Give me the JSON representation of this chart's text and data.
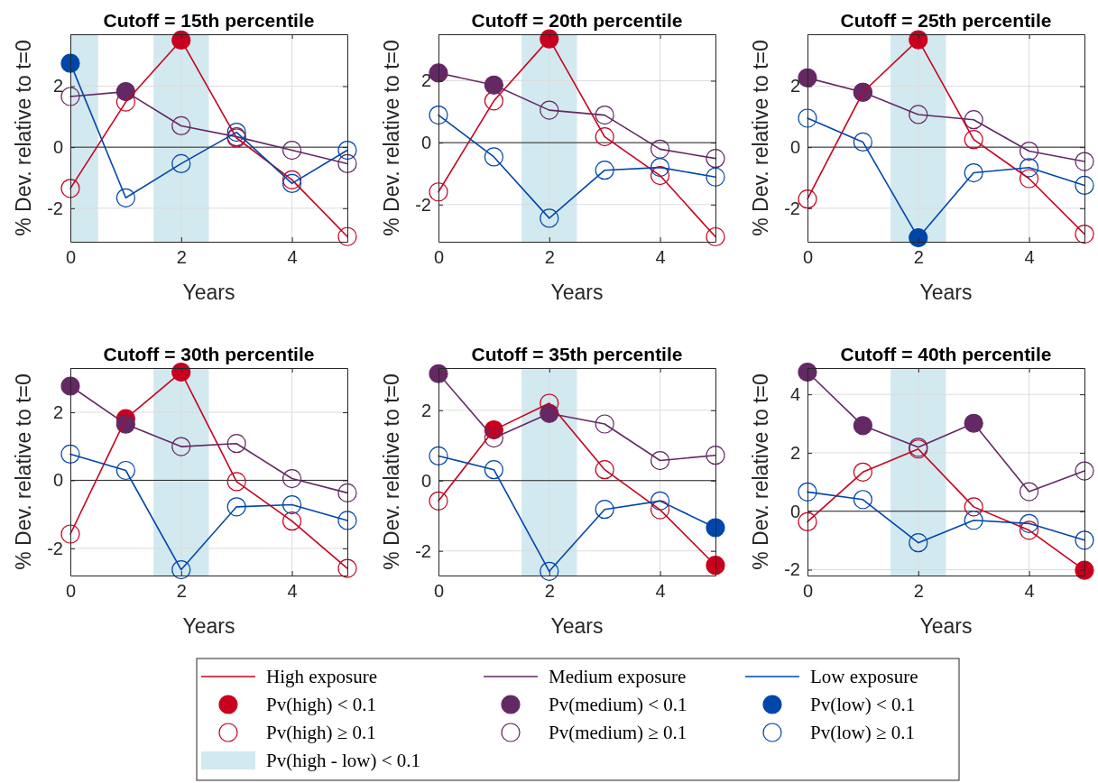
{
  "chart_data": [
    {
      "type": "line",
      "title": "Cutoff = 15th percentile",
      "xlabel": "Years",
      "ylabel": "% Dev. relative to t=0",
      "x": [
        0,
        1,
        2,
        3,
        4,
        5
      ],
      "xlim": [
        0,
        5
      ],
      "xticks": [
        0,
        2,
        4
      ],
      "ylim": [
        -3.1,
        3.7
      ],
      "yticks": [
        -2,
        0,
        2
      ],
      "grid": true,
      "legend": "bottom",
      "bands": [
        {
          "axis": "x",
          "from": 0,
          "to": 0.5,
          "color": "#d2e9ef",
          "label": "Pv(high - low) < 0.1"
        },
        {
          "axis": "x",
          "from": 1.5,
          "to": 2.5,
          "color": "#d2e9ef"
        }
      ],
      "ref_lines": [
        {
          "axis": "y",
          "value": 0,
          "color": "#262626"
        }
      ],
      "series": [
        {
          "name": "High exposure",
          "marker": "none",
          "color": "#c8001e",
          "values": [
            -1.35,
            1.48,
            3.51,
            0.3,
            -1.07,
            -2.93
          ]
        },
        {
          "name": "Pv(high) < 0.1",
          "type": "bubble",
          "marker": "circle",
          "color": "#c8001e",
          "values": [
            null,
            null,
            3.51,
            null,
            null,
            null
          ],
          "sizes": [
            null,
            null,
            1,
            null,
            null,
            null
          ]
        },
        {
          "name": "Pv(high) ≥ 0.1",
          "type": "scatter",
          "marker": "circle",
          "color": "#c8001e",
          "values": [
            -1.35,
            1.48,
            null,
            0.3,
            -1.07,
            -2.93
          ]
        },
        {
          "name": "Medium exposure",
          "marker": "none",
          "color": "#642864",
          "values": [
            1.66,
            1.82,
            0.7,
            0.34,
            -0.1,
            -0.54
          ]
        },
        {
          "name": "Pv(medium) < 0.1",
          "type": "bubble",
          "marker": "circle",
          "color": "#642864",
          "values": [
            null,
            1.82,
            null,
            null,
            null,
            null
          ],
          "sizes": [
            null,
            1,
            null,
            null,
            null,
            null
          ]
        },
        {
          "name": "Pv(medium) ≥ 0.1",
          "type": "scatter",
          "marker": "circle",
          "color": "#642864",
          "values": [
            1.66,
            null,
            0.7,
            0.34,
            -0.1,
            -0.54
          ]
        },
        {
          "name": "Low exposure",
          "marker": "none",
          "color": "#0046aa",
          "values": [
            2.75,
            -1.66,
            -0.54,
            0.49,
            -1.19,
            -0.1
          ]
        },
        {
          "name": "Pv(low) < 0.1",
          "type": "bubble",
          "marker": "circle",
          "color": "#0046aa",
          "values": [
            2.75,
            null,
            null,
            null,
            null,
            null
          ],
          "sizes": [
            1,
            null,
            null,
            null,
            null,
            null
          ]
        },
        {
          "name": "Pv(low) ≥ 0.1",
          "type": "scatter",
          "marker": "circle",
          "color": "#0046aa",
          "values": [
            null,
            -1.66,
            -0.54,
            0.49,
            -1.19,
            -0.1
          ]
        }
      ]
    },
    {
      "type": "line",
      "title": "Cutoff = 20th percentile",
      "xlabel": "Years",
      "ylabel": "% Dev. relative to t=0",
      "x": [
        0,
        1,
        2,
        3,
        4,
        5
      ],
      "xlim": [
        0,
        5
      ],
      "xticks": [
        0,
        2,
        4
      ],
      "ylim": [
        -3.2,
        3.5
      ],
      "yticks": [
        -2,
        0,
        2
      ],
      "grid": true,
      "bands": [
        {
          "axis": "x",
          "from": 1.5,
          "to": 2.5,
          "color": "#d2e9ef"
        }
      ],
      "ref_lines": [
        {
          "axis": "y",
          "value": 0,
          "color": "#262626"
        }
      ],
      "series": [
        {
          "marker": "none",
          "color": "#c8001e",
          "values": [
            -1.59,
            1.35,
            3.35,
            0.19,
            -1.06,
            -3.04
          ]
        },
        {
          "type": "bubble",
          "marker": "circle",
          "color": "#c8001e",
          "values": [
            null,
            null,
            3.35,
            null,
            null,
            null
          ],
          "sizes": [
            null,
            null,
            1,
            null,
            null,
            null
          ]
        },
        {
          "type": "scatter",
          "marker": "circle",
          "color": "#c8001e",
          "values": [
            -1.59,
            1.35,
            null,
            0.19,
            -1.06,
            -3.04
          ]
        },
        {
          "marker": "none",
          "color": "#642864",
          "values": [
            2.25,
            1.86,
            1.05,
            0.89,
            -0.21,
            -0.51
          ]
        },
        {
          "type": "bubble",
          "marker": "circle",
          "color": "#642864",
          "values": [
            2.25,
            1.86,
            null,
            null,
            null,
            null
          ],
          "sizes": [
            1,
            1,
            null,
            null,
            null,
            null
          ]
        },
        {
          "type": "scatter",
          "marker": "circle",
          "color": "#642864",
          "values": [
            null,
            null,
            1.05,
            0.89,
            -0.21,
            -0.51
          ]
        },
        {
          "marker": "none",
          "color": "#0046aa",
          "values": [
            0.89,
            -0.46,
            -2.44,
            -0.89,
            -0.8,
            -1.11
          ]
        },
        {
          "type": "scatter",
          "marker": "circle",
          "color": "#0046aa",
          "values": [
            0.89,
            -0.46,
            -2.44,
            -0.89,
            -0.8,
            -1.11
          ]
        }
      ]
    },
    {
      "type": "line",
      "title": "Cutoff = 25th percentile",
      "xlabel": "Years",
      "ylabel": "% Dev. relative to t=0",
      "x": [
        0,
        1,
        2,
        3,
        4,
        5
      ],
      "xlim": [
        0,
        5
      ],
      "xticks": [
        0,
        2,
        4
      ],
      "ylim": [
        -3.1,
        3.7
      ],
      "yticks": [
        -2,
        0,
        2
      ],
      "grid": true,
      "bands": [
        {
          "axis": "x",
          "from": 1.5,
          "to": 2.5,
          "color": "#d2e9ef"
        }
      ],
      "ref_lines": [
        {
          "axis": "y",
          "value": 0,
          "color": "#262626"
        }
      ],
      "series": [
        {
          "marker": "none",
          "color": "#c8001e",
          "values": [
            -1.7,
            1.8,
            3.52,
            0.25,
            -1.03,
            -2.85
          ]
        },
        {
          "type": "bubble",
          "marker": "circle",
          "color": "#c8001e",
          "values": [
            null,
            null,
            3.52,
            null,
            null,
            null
          ],
          "sizes": [
            null,
            null,
            1,
            null,
            null,
            null
          ]
        },
        {
          "type": "scatter",
          "marker": "circle",
          "color": "#c8001e",
          "values": [
            -1.7,
            1.8,
            null,
            0.25,
            -1.03,
            -2.85
          ]
        },
        {
          "marker": "none",
          "color": "#642864",
          "values": [
            2.27,
            1.8,
            1.07,
            0.9,
            -0.13,
            -0.47
          ]
        },
        {
          "type": "bubble",
          "marker": "circle",
          "color": "#642864",
          "values": [
            2.27,
            1.8,
            null,
            null,
            null,
            null
          ],
          "sizes": [
            1,
            1,
            null,
            null,
            null,
            null
          ]
        },
        {
          "type": "scatter",
          "marker": "circle",
          "color": "#642864",
          "values": [
            null,
            null,
            1.07,
            0.9,
            -0.13,
            -0.47
          ]
        },
        {
          "marker": "none",
          "color": "#0046aa",
          "values": [
            0.95,
            0.17,
            -2.97,
            -0.84,
            -0.67,
            -1.25
          ]
        },
        {
          "type": "bubble",
          "marker": "circle",
          "color": "#0046aa",
          "values": [
            null,
            null,
            -2.97,
            null,
            null,
            null
          ],
          "sizes": [
            null,
            null,
            1,
            null,
            null,
            null
          ]
        },
        {
          "type": "scatter",
          "marker": "circle",
          "color": "#0046aa",
          "values": [
            0.95,
            0.17,
            null,
            -0.84,
            -0.67,
            -1.25
          ]
        }
      ]
    },
    {
      "type": "line",
      "title": "Cutoff = 30th percentile",
      "xlabel": "Years",
      "ylabel": "% Dev. relative to t=0",
      "x": [
        0,
        1,
        2,
        3,
        4,
        5
      ],
      "xlim": [
        0,
        5
      ],
      "xticks": [
        0,
        2,
        4
      ],
      "ylim": [
        -2.8,
        3.3
      ],
      "yticks": [
        -2,
        0,
        2
      ],
      "grid": true,
      "bands": [
        {
          "axis": "x",
          "from": 1.5,
          "to": 2.5,
          "color": "#d2e9ef"
        }
      ],
      "ref_lines": [
        {
          "axis": "y",
          "value": 0,
          "color": "#262626"
        }
      ],
      "series": [
        {
          "marker": "none",
          "color": "#c8001e",
          "values": [
            -1.58,
            1.81,
            3.18,
            -0.04,
            -1.2,
            -2.59
          ]
        },
        {
          "type": "bubble",
          "marker": "circle",
          "color": "#c8001e",
          "values": [
            null,
            1.81,
            3.18,
            null,
            null,
            null
          ],
          "sizes": [
            null,
            1,
            1,
            null,
            null,
            null
          ]
        },
        {
          "type": "scatter",
          "marker": "circle",
          "color": "#c8001e",
          "values": [
            -1.58,
            null,
            null,
            -0.04,
            -1.2,
            -2.59
          ]
        },
        {
          "marker": "none",
          "color": "#642864",
          "values": [
            2.77,
            1.65,
            0.99,
            1.08,
            0.05,
            -0.37
          ]
        },
        {
          "type": "bubble",
          "marker": "circle",
          "color": "#642864",
          "values": [
            2.77,
            1.65,
            null,
            null,
            null,
            null
          ],
          "sizes": [
            1,
            1,
            null,
            null,
            null,
            null
          ]
        },
        {
          "type": "scatter",
          "marker": "circle",
          "color": "#642864",
          "values": [
            null,
            null,
            0.99,
            1.08,
            0.05,
            -0.37
          ]
        },
        {
          "marker": "none",
          "color": "#0046aa",
          "values": [
            0.77,
            0.29,
            -2.63,
            -0.78,
            -0.72,
            -1.18
          ]
        },
        {
          "type": "scatter",
          "marker": "circle",
          "color": "#0046aa",
          "values": [
            0.77,
            0.29,
            -2.63,
            -0.78,
            -0.72,
            -1.18
          ]
        }
      ]
    },
    {
      "type": "line",
      "title": "Cutoff = 35th percentile",
      "xlabel": "Years",
      "ylabel": "% Dev. relative to t=0",
      "x": [
        0,
        1,
        2,
        3,
        4,
        5
      ],
      "xlim": [
        0,
        5
      ],
      "xticks": [
        0,
        2,
        4
      ],
      "ylim": [
        -2.7,
        3.2
      ],
      "yticks": [
        -2,
        0,
        2
      ],
      "grid": true,
      "bands": [
        {
          "axis": "x",
          "from": 1.5,
          "to": 2.5,
          "color": "#d2e9ef"
        }
      ],
      "ref_lines": [
        {
          "axis": "y",
          "value": 0,
          "color": "#262626"
        }
      ],
      "series": [
        {
          "marker": "none",
          "color": "#c8001e",
          "values": [
            -0.58,
            1.44,
            2.2,
            0.31,
            -0.83,
            -2.41
          ]
        },
        {
          "type": "bubble",
          "marker": "circle",
          "color": "#c8001e",
          "values": [
            null,
            1.44,
            null,
            null,
            null,
            -2.41
          ],
          "sizes": [
            null,
            1,
            null,
            null,
            null,
            1
          ]
        },
        {
          "type": "scatter",
          "marker": "circle",
          "color": "#c8001e",
          "values": [
            -0.58,
            null,
            2.2,
            0.31,
            -0.83,
            null
          ]
        },
        {
          "marker": "none",
          "color": "#642864",
          "values": [
            3.04,
            1.21,
            1.91,
            1.61,
            0.57,
            0.72
          ]
        },
        {
          "type": "bubble",
          "marker": "circle",
          "color": "#642864",
          "values": [
            3.04,
            null,
            1.91,
            null,
            null,
            null
          ],
          "sizes": [
            1,
            null,
            1,
            null,
            null,
            null
          ]
        },
        {
          "type": "scatter",
          "marker": "circle",
          "color": "#642864",
          "values": [
            null,
            1.21,
            null,
            1.61,
            0.57,
            0.72
          ]
        },
        {
          "marker": "none",
          "color": "#0046aa",
          "values": [
            0.7,
            0.31,
            -2.58,
            -0.82,
            -0.58,
            -1.34
          ]
        },
        {
          "type": "bubble",
          "marker": "circle",
          "color": "#0046aa",
          "values": [
            null,
            null,
            null,
            null,
            null,
            -1.34
          ],
          "sizes": [
            null,
            null,
            null,
            null,
            null,
            1
          ]
        },
        {
          "type": "scatter",
          "marker": "circle",
          "color": "#0046aa",
          "values": [
            0.7,
            0.31,
            -2.58,
            -0.82,
            -0.58,
            null
          ]
        }
      ]
    },
    {
      "type": "line",
      "title": "Cutoff = 40th percentile",
      "xlabel": "Years",
      "ylabel": "% Dev. relative to t=0",
      "x": [
        0,
        1,
        2,
        3,
        4,
        5
      ],
      "xlim": [
        0,
        5
      ],
      "xticks": [
        0,
        2,
        4
      ],
      "ylim": [
        -2.2,
        4.9
      ],
      "yticks": [
        -2,
        0,
        2,
        4
      ],
      "grid": true,
      "bands": [
        {
          "axis": "x",
          "from": 1.5,
          "to": 2.5,
          "color": "#d2e9ef"
        }
      ],
      "ref_lines": [
        {
          "axis": "y",
          "value": 0,
          "color": "#262626"
        }
      ],
      "series": [
        {
          "marker": "none",
          "color": "#c8001e",
          "values": [
            -0.36,
            1.34,
            2.13,
            0.15,
            -0.65,
            -2.02
          ]
        },
        {
          "type": "bubble",
          "marker": "circle",
          "color": "#c8001e",
          "values": [
            null,
            null,
            null,
            null,
            null,
            -2.02
          ],
          "sizes": [
            null,
            null,
            null,
            null,
            null,
            1
          ]
        },
        {
          "type": "scatter",
          "marker": "circle",
          "color": "#c8001e",
          "values": [
            -0.36,
            1.34,
            2.13,
            0.15,
            -0.65,
            null
          ]
        },
        {
          "marker": "none",
          "color": "#642864",
          "values": [
            4.76,
            2.93,
            2.19,
            3.01,
            0.67,
            1.38
          ]
        },
        {
          "type": "bubble",
          "marker": "circle",
          "color": "#642864",
          "values": [
            4.76,
            2.93,
            null,
            3.01,
            null,
            null
          ],
          "sizes": [
            1,
            1,
            null,
            1,
            null,
            null
          ]
        },
        {
          "type": "scatter",
          "marker": "circle",
          "color": "#642864",
          "values": [
            null,
            null,
            2.19,
            null,
            0.67,
            1.38
          ]
        },
        {
          "marker": "none",
          "color": "#0046aa",
          "values": [
            0.66,
            0.4,
            -1.08,
            -0.31,
            -0.42,
            -0.99
          ]
        },
        {
          "type": "scatter",
          "marker": "circle",
          "color": "#0046aa",
          "values": [
            0.66,
            0.4,
            -1.08,
            -0.31,
            -0.42,
            -0.99
          ]
        }
      ]
    }
  ]
}
